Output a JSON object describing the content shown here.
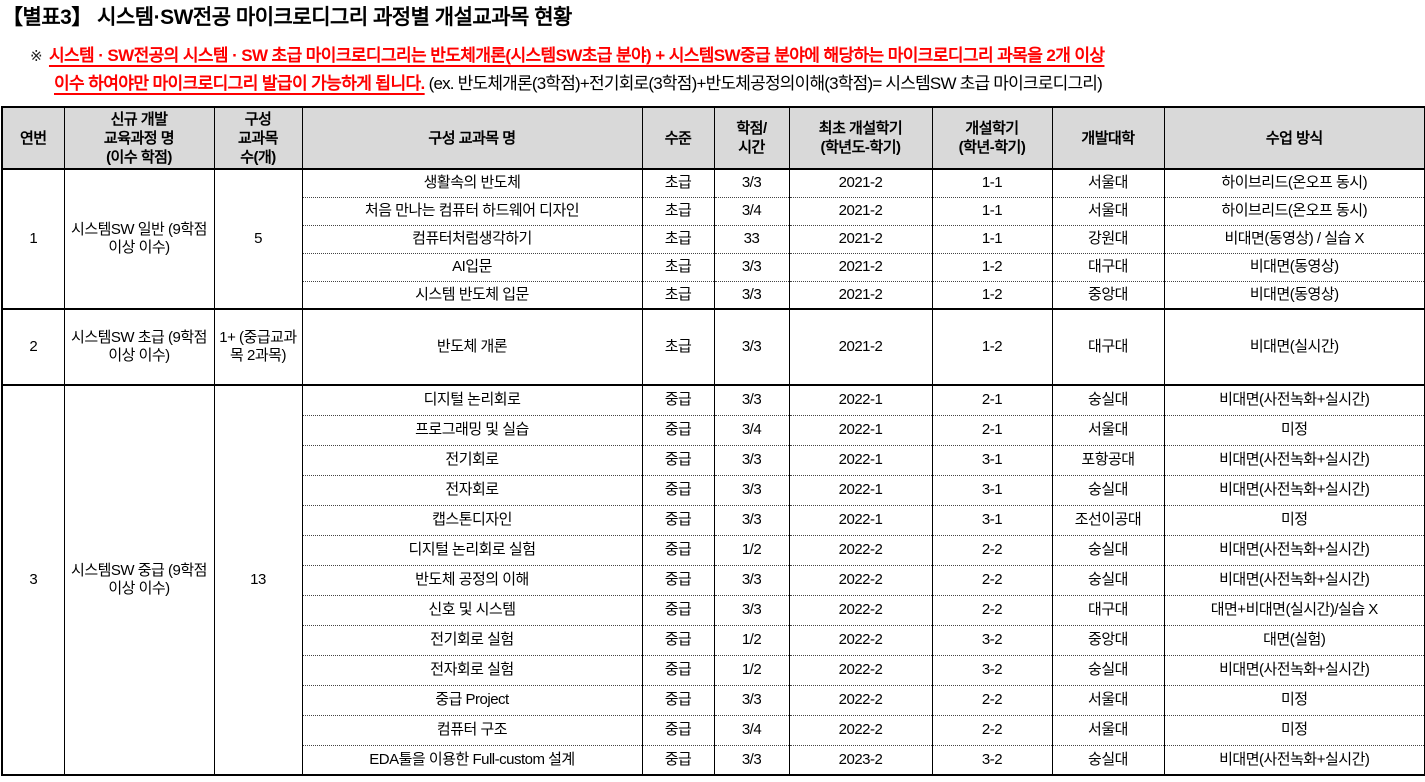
{
  "title": "【별표3】 시스템·SW전공 마이크로디그리 과정별 개설교과목 현황",
  "note": {
    "marker": "※",
    "red_line1": "시스템 · SW전공의 시스템 · SW 초급 마이크로디그리는 반도체개론(시스템SW초급 분야) + 시스템SW중급 분야에 해당하는 마이크로디그리 과목을 2개 이상",
    "red_line2": "이수 하여야만 마이크로디그리 발급이 가능하게 됩니다.",
    "example": " (ex. 반도체개론(3학점)+전기회로(3학점)+반도체공정의이해(3학점)= 시스템SW 초급 마이크로디그리)"
  },
  "table": {
    "headers": [
      "연번",
      "신규 개발\n교육과정 명\n(이수 학점)",
      "구성\n교과목\n수(개)",
      "구성 교과목 명",
      "수준",
      "학점/\n시간",
      "최초 개설학기\n(학년도-학기)",
      "개설학기\n(학년-학기)",
      "개발대학",
      "수업 방식"
    ],
    "groups": [
      {
        "no": "1",
        "program": "시스템SW 일반 (9학점 이상 이수)",
        "count": "5",
        "courses": [
          [
            "생활속의 반도체",
            "초급",
            "3/3",
            "2021-2",
            "1-1",
            "서울대",
            "하이브리드(온오프 동시)"
          ],
          [
            "처음 만나는 컴퓨터 하드웨어 디자인",
            "초급",
            "3/4",
            "2021-2",
            "1-1",
            "서울대",
            "하이브리드(온오프 동시)"
          ],
          [
            "컴퓨터처럼생각하기",
            "초급",
            "33",
            "2021-2",
            "1-1",
            "강원대",
            "비대면(동영상) / 실습 X"
          ],
          [
            "AI입문",
            "초급",
            "3/3",
            "2021-2",
            "1-2",
            "대구대",
            "비대면(동영상)"
          ],
          [
            "시스템 반도체 입문",
            "초급",
            "3/3",
            "2021-2",
            "1-2",
            "중앙대",
            "비대면(동영상)"
          ]
        ]
      },
      {
        "no": "2",
        "program": "시스템SW 초급 (9학점 이상 이수)",
        "count": "1+ (중급교과목 2과목)",
        "courses": [
          [
            "반도체 개론",
            "초급",
            "3/3",
            "2021-2",
            "1-2",
            "대구대",
            "비대면(실시간)"
          ]
        ]
      },
      {
        "no": "3",
        "program": "시스템SW 중급 (9학점 이상 이수)",
        "count": "13",
        "courses": [
          [
            "디지털 논리회로",
            "중급",
            "3/3",
            "2022-1",
            "2-1",
            "숭실대",
            "비대면(사전녹화+실시간)"
          ],
          [
            "프로그래밍 및 실습",
            "중급",
            "3/4",
            "2022-1",
            "2-1",
            "서울대",
            "미정"
          ],
          [
            "전기회로",
            "중급",
            "3/3",
            "2022-1",
            "3-1",
            "포항공대",
            "비대면(사전녹화+실시간)"
          ],
          [
            "전자회로",
            "중급",
            "3/3",
            "2022-1",
            "3-1",
            "숭실대",
            "비대면(사전녹화+실시간)"
          ],
          [
            "캡스톤디자인",
            "중급",
            "3/3",
            "2022-1",
            "3-1",
            "조선이공대",
            "미정"
          ],
          [
            "디지털 논리회로 실험",
            "중급",
            "1/2",
            "2022-2",
            "2-2",
            "숭실대",
            "비대면(사전녹화+실시간)"
          ],
          [
            "반도체 공정의 이해",
            "중급",
            "3/3",
            "2022-2",
            "2-2",
            "숭실대",
            "비대면(사전녹화+실시간)"
          ],
          [
            "신호 및 시스템",
            "중급",
            "3/3",
            "2022-2",
            "2-2",
            "대구대",
            "대면+비대면(실시간)/실습 X"
          ],
          [
            "전기회로 실험",
            "중급",
            "1/2",
            "2022-2",
            "3-2",
            "중앙대",
            "대면(실험)"
          ],
          [
            "전자회로 실험",
            "중급",
            "1/2",
            "2022-2",
            "3-2",
            "숭실대",
            "비대면(사전녹화+실시간)"
          ],
          [
            "중급 Project",
            "중급",
            "3/3",
            "2022-2",
            "2-2",
            "서울대",
            "미정"
          ],
          [
            "컴퓨터 구조",
            "중급",
            "3/4",
            "2022-2",
            "2-2",
            "서울대",
            "미정"
          ],
          [
            "EDA툴을 이용한 Full-custom 설계",
            "중급",
            "3/3",
            "2023-2",
            "3-2",
            "숭실대",
            "비대면(사전녹화+실시간)"
          ]
        ]
      }
    ]
  },
  "colors": {
    "note_red": "#ff0000",
    "header_bg": "#d9d9d9",
    "border": "#000000"
  }
}
